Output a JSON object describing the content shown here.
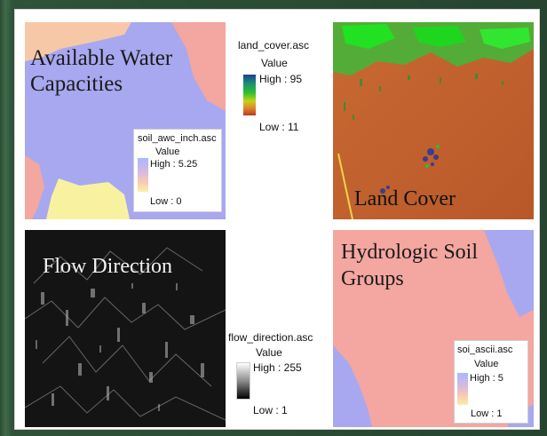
{
  "panels": {
    "awc": {
      "title_line1": "Available Water",
      "title_line2": "Capacities",
      "legend": {
        "file": "soil_awc_inch.asc",
        "value_label": "Value",
        "high": "High : 5.25",
        "low": "Low : 0"
      }
    },
    "land_cover": {
      "title": "Land Cover",
      "legend": {
        "file": "land_cover.asc",
        "value_label": "Value",
        "high": "High : 95",
        "low": "Low : 11"
      }
    },
    "flow_direction": {
      "title": "Flow Direction",
      "legend": {
        "file": "flow_direction.asc",
        "value_label": "Value",
        "high": "High : 255",
        "low": "Low : 1"
      }
    },
    "hydrologic_soil": {
      "title_line1": "Hydrologic Soil",
      "title_line2": "Groups",
      "legend": {
        "file": "soi_ascii.asc",
        "value_label": "Value",
        "high": "High : 5",
        "low": "Low : 1"
      }
    }
  },
  "colors": {
    "awc_blue": "#a8a8f0",
    "awc_salmon": "#f4a6a0",
    "awc_yellow": "#f8f2a0",
    "awc_peach": "#f7c8a8",
    "land_cover_base": "#c2602f",
    "land_cover_green": "#2fd92f",
    "flow_dark": "#151515",
    "hsg_salmon": "#f4a6a0",
    "hsg_blue": "#a8a8f0"
  }
}
